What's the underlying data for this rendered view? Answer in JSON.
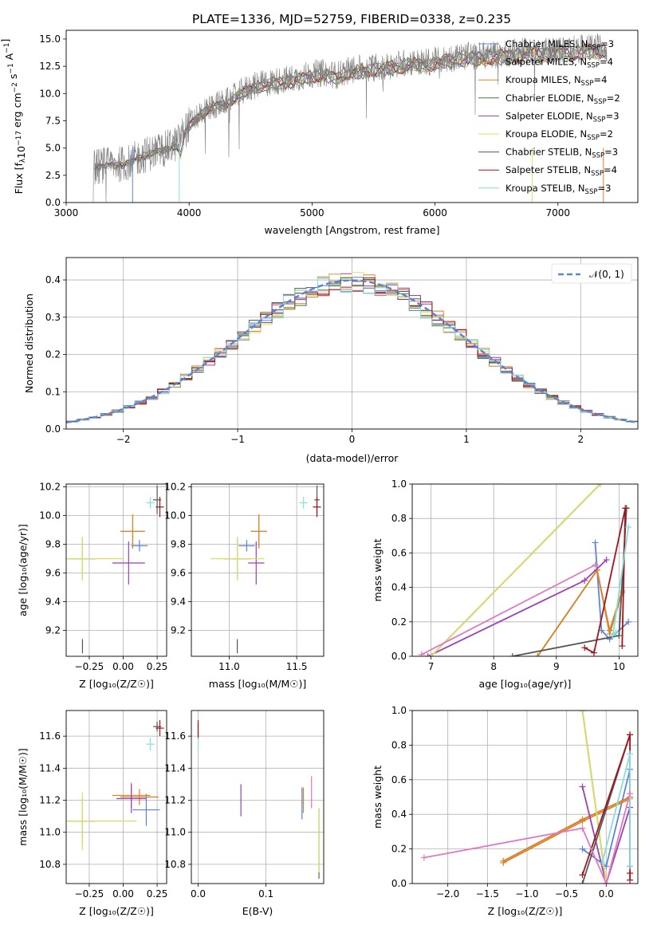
{
  "figure_title": "PLATE=1336, MJD=52759, FIBERID=0338, z=0.235",
  "colors": {
    "Chabrier MILES": "#5b84d6",
    "Salpeter MILES": "#e07a2a",
    "Kroupa MILES": "#d2882c",
    "Chabrier ELODIE": "#3a7d3a",
    "Salpeter ELODIE": "#9a3fb8",
    "Kroupa ELODIE": "#e0dc6a",
    "Chabrier STELIB": "#555555",
    "Salpeter STELIB": "#a3141c",
    "Kroupa STELIB": "#86dede",
    "data": "#808080",
    "gauss": "#5b84d6"
  },
  "chart_data": [
    {
      "type": "line",
      "panel": "spectrum",
      "xlabel": "wavelength [Angstrom, rest frame]",
      "ylabel": "Flux [f$_\\lambda$10$^{-17}$ erg cm$^{-2}$ s$^{-1}$ A$^{-1}$]",
      "xlim": [
        3000,
        7650
      ],
      "ylim": [
        0,
        15.8
      ],
      "xticks": [
        "3000",
        "4000",
        "5000",
        "6000",
        "7000"
      ],
      "yticks": [
        "0.0",
        "2.5",
        "5.0",
        "7.5",
        "10.0",
        "12.5",
        "15.0"
      ],
      "legend_position": "upper-right",
      "legend": [
        {
          "name": "Chabrier MILES, N",
          "sub": "SSP",
          "suffix": "=3"
        },
        {
          "name": "Salpeter MILES, N",
          "sub": "SSP",
          "suffix": "=4"
        },
        {
          "name": "Kroupa MILES, N",
          "sub": "SSP",
          "suffix": "=4"
        },
        {
          "name": "Chabrier ELODIE, N",
          "sub": "SSP",
          "suffix": "=2"
        },
        {
          "name": "Salpeter ELODIE, N",
          "sub": "SSP",
          "suffix": "=3"
        },
        {
          "name": "Kroupa ELODIE, N",
          "sub": "SSP",
          "suffix": "=2"
        },
        {
          "name": "Chabrier STELIB, N",
          "sub": "SSP",
          "suffix": "=3"
        },
        {
          "name": "Salpeter STELIB, N",
          "sub": "SSP",
          "suffix": "=4"
        },
        {
          "name": "Kroupa STELIB, N",
          "sub": "SSP",
          "suffix": "=3"
        }
      ],
      "continuum": [
        [
          3220,
          3.2
        ],
        [
          3300,
          3.4
        ],
        [
          3400,
          3.5
        ],
        [
          3500,
          3.6
        ],
        [
          3600,
          4.2
        ],
        [
          3700,
          4.6
        ],
        [
          3800,
          4.9
        ],
        [
          3900,
          5.4
        ],
        [
          4000,
          7.2
        ],
        [
          4100,
          8.3
        ],
        [
          4200,
          8.9
        ],
        [
          4300,
          9.2
        ],
        [
          4400,
          10.0
        ],
        [
          4500,
          10.6
        ],
        [
          4600,
          10.9
        ],
        [
          4700,
          11.1
        ],
        [
          4800,
          11.3
        ],
        [
          4900,
          11.5
        ],
        [
          5000,
          11.8
        ],
        [
          5100,
          11.9
        ],
        [
          5200,
          11.7
        ],
        [
          5300,
          12.1
        ],
        [
          5400,
          12.3
        ],
        [
          5500,
          12.4
        ],
        [
          5600,
          12.5
        ],
        [
          5700,
          12.7
        ],
        [
          5800,
          12.9
        ],
        [
          5900,
          12.8
        ],
        [
          6000,
          13.0
        ],
        [
          6100,
          13.2
        ],
        [
          6200,
          13.4
        ],
        [
          6300,
          13.4
        ],
        [
          6400,
          13.5
        ],
        [
          6500,
          13.6
        ],
        [
          6600,
          13.7
        ],
        [
          6700,
          13.8
        ],
        [
          6800,
          13.9
        ],
        [
          6900,
          13.9
        ],
        [
          7000,
          14.0
        ],
        [
          7100,
          14.0
        ],
        [
          7200,
          14.1
        ],
        [
          7300,
          14.2
        ],
        [
          7400,
          14.2
        ]
      ]
    },
    {
      "type": "line",
      "panel": "residual_histogram",
      "xlabel": "(data-model)/error",
      "ylabel": "Normed distribution",
      "xlim": [
        -2.5,
        2.5
      ],
      "ylim": [
        0,
        0.46
      ],
      "xticks": [
        "−2",
        "−1",
        "0",
        "1",
        "2"
      ],
      "yticks": [
        "0.0",
        "0.1",
        "0.2",
        "0.3",
        "0.4"
      ],
      "grid": true,
      "legend_position": "upper-right",
      "gauss_label": "𝒩(0, 1)"
    },
    {
      "type": "scatter",
      "panel": "age_vs_Z",
      "xlabel": "Z [log₁₀(Z/Z☉)]",
      "ylabel": "age  [log₁₀(age/yr)]",
      "xlim": [
        -0.42,
        0.32
      ],
      "ylim": [
        9.02,
        10.22
      ],
      "xticks": [
        "−0.25",
        "0.00",
        "0.25"
      ],
      "yticks": [
        "9.2",
        "9.4",
        "9.6",
        "9.8",
        "10.0",
        "10.2"
      ],
      "grid": true,
      "points": [
        {
          "model": "Chabrier MILES",
          "x": 0.12,
          "y": 9.79,
          "xerr": 0.06,
          "yerr": 0.04
        },
        {
          "model": "Salpeter MILES",
          "x": 0.07,
          "y": 9.89,
          "xerr": 0.09,
          "yerr": 0.11
        },
        {
          "model": "Kroupa MILES",
          "x": 0.07,
          "y": 9.89,
          "xerr": 0.09,
          "yerr": 0.12
        },
        {
          "model": "Chabrier ELODIE",
          "x": -0.3,
          "y": 9.7,
          "xerr": 0.1,
          "yerr": 0.15
        },
        {
          "model": "Salpeter ELODIE",
          "x": 0.04,
          "y": 9.67,
          "xerr": 0.12,
          "yerr": 0.15
        },
        {
          "model": "Kroupa ELODIE",
          "x": -0.3,
          "y": 9.7,
          "xerr": 0.3,
          "yerr": 0.15
        },
        {
          "model": "Chabrier STELIB",
          "x": 0.25,
          "y": 10.11,
          "xerr": 0.03,
          "yerr": 0.1
        },
        {
          "model": "Salpeter STELIB",
          "x": 0.27,
          "y": 10.06,
          "xerr": 0.03,
          "yerr": 0.07
        },
        {
          "model": "Kroupa STELIB",
          "x": 0.2,
          "y": 10.09,
          "xerr": 0.03,
          "yerr": 0.04
        },
        {
          "model": "Chabrier STELIB",
          "x": -0.3,
          "y": 9.09,
          "xerr": 0.0,
          "yerr": 0.05
        }
      ]
    },
    {
      "type": "scatter",
      "panel": "age_vs_mass",
      "xlabel": "mass [log₁₀(M/M☉)]",
      "ylabel": "",
      "xlim": [
        10.72,
        11.7
      ],
      "ylim": [
        9.02,
        10.22
      ],
      "xticks": [
        "11.0",
        "11.5"
      ],
      "yticks": [
        "9.2",
        "9.4",
        "9.6",
        "9.8",
        "10.0",
        "10.2"
      ],
      "grid": true,
      "points": [
        {
          "model": "Chabrier MILES",
          "x": 11.13,
          "y": 9.79,
          "xerr": 0.06,
          "yerr": 0.04
        },
        {
          "model": "Salpeter MILES",
          "x": 11.22,
          "y": 9.89,
          "xerr": 0.06,
          "yerr": 0.11
        },
        {
          "model": "Kroupa MILES",
          "x": 11.22,
          "y": 9.89,
          "xerr": 0.06,
          "yerr": 0.12
        },
        {
          "model": "Chabrier ELODIE",
          "x": 11.06,
          "y": 9.7,
          "xerr": 0.1,
          "yerr": 0.15
        },
        {
          "model": "Salpeter ELODIE",
          "x": 11.2,
          "y": 9.67,
          "xerr": 0.06,
          "yerr": 0.15
        },
        {
          "model": "Kroupa ELODIE",
          "x": 11.06,
          "y": 9.7,
          "xerr": 0.2,
          "yerr": 0.15
        },
        {
          "model": "Chabrier STELIB",
          "x": 11.65,
          "y": 10.11,
          "xerr": 0.02,
          "yerr": 0.1
        },
        {
          "model": "Salpeter STELIB",
          "x": 11.65,
          "y": 10.06,
          "xerr": 0.03,
          "yerr": 0.07
        },
        {
          "model": "Kroupa STELIB",
          "x": 11.55,
          "y": 10.09,
          "xerr": 0.03,
          "yerr": 0.04
        },
        {
          "model": "Chabrier STELIB",
          "x": 11.06,
          "y": 9.09,
          "xerr": 0.0,
          "yerr": 0.05
        }
      ]
    },
    {
      "type": "line",
      "panel": "mass_weight_vs_age",
      "xlabel": "age  [log₁₀(age/yr)]",
      "ylabel": "mass weight",
      "xlim": [
        6.7,
        10.3
      ],
      "ylim": [
        0,
        1
      ],
      "xticks": [
        "7",
        "8",
        "9",
        "10"
      ],
      "yticks": [
        "0.0",
        "0.2",
        "0.4",
        "0.6",
        "0.8",
        "1.0"
      ],
      "grid": true,
      "series": [
        {
          "model": "Chabrier MILES",
          "x": [
            9.62,
            9.72,
            9.85,
            10.15
          ],
          "y": [
            0.66,
            0.15,
            0.1,
            0.2
          ]
        },
        {
          "model": "Salpeter MILES",
          "x": [
            8.7,
            9.65,
            9.85,
            10.05
          ],
          "y": [
            0.0,
            0.5,
            0.15,
            0.38
          ]
        },
        {
          "model": "Kroupa MILES",
          "x": [
            8.7,
            9.65,
            9.85,
            10.05
          ],
          "y": [
            0.0,
            0.5,
            0.13,
            0.37
          ]
        },
        {
          "model": "Chabrier ELODIE",
          "x": [
            7.0,
            9.7
          ],
          "y": [
            0.0,
            1.0
          ]
        },
        {
          "model": "Salpeter ELODIE",
          "x": [
            6.95,
            9.45,
            9.8
          ],
          "y": [
            0.0,
            0.44,
            0.56
          ]
        },
        {
          "model": "Kroupa ELODIE",
          "x": [
            7.0,
            9.7
          ],
          "y": [
            0.0,
            1.0
          ]
        },
        {
          "model": "Chabrier STELIB",
          "x": [
            8.3,
            10.0,
            10.12
          ],
          "y": [
            0.0,
            0.12,
            0.86
          ]
        },
        {
          "model": "Salpeter STELIB",
          "x": [
            9.45,
            9.6,
            10.1,
            10.05
          ],
          "y": [
            0.05,
            0.02,
            0.86,
            0.06
          ]
        },
        {
          "model": "Kroupa STELIB",
          "x": [
            9.95,
            9.9,
            10.15
          ],
          "y": [
            0.14,
            0.12,
            0.75
          ]
        },
        {
          "model": "Salpeter ELODIE pink",
          "x": [
            6.85,
            9.62
          ],
          "y": [
            0.01,
            0.53
          ]
        }
      ]
    },
    {
      "type": "scatter",
      "panel": "mass_vs_Z",
      "xlabel": "Z [log₁₀(Z/Z☉)]",
      "ylabel": "mass [log₁₀(M/M☉)]",
      "xlim": [
        -0.42,
        0.32
      ],
      "ylim": [
        10.68,
        11.76
      ],
      "xticks": [
        "−0.25",
        "0.00",
        "0.25"
      ],
      "yticks": [
        "10.8",
        "11.0",
        "11.2",
        "11.4",
        "11.6"
      ],
      "grid": true,
      "points": [
        {
          "model": "Chabrier MILES",
          "x": 0.17,
          "y": 11.14,
          "xerr": 0.1,
          "yerr": 0.1
        },
        {
          "model": "Salpeter MILES",
          "x": 0.12,
          "y": 11.22,
          "xerr": 0.14,
          "yerr": 0.05
        },
        {
          "model": "Kroupa MILES",
          "x": 0.06,
          "y": 11.23,
          "xerr": 0.14,
          "yerr": 0.08
        },
        {
          "model": "Chabrier ELODIE",
          "x": -0.3,
          "y": 11.07,
          "xerr": 0.1,
          "yerr": 0.15
        },
        {
          "model": "Salpeter ELODIE",
          "x": 0.06,
          "y": 11.21,
          "xerr": 0.11,
          "yerr": 0.09
        },
        {
          "model": "Kroupa ELODIE",
          "x": -0.3,
          "y": 11.07,
          "xerr": 0.4,
          "yerr": 0.18
        },
        {
          "model": "Chabrier STELIB",
          "x": 0.25,
          "y": 11.66,
          "xerr": 0.03,
          "yerr": 0.03
        },
        {
          "model": "Salpeter STELIB",
          "x": 0.27,
          "y": 11.65,
          "xerr": 0.03,
          "yerr": 0.05
        },
        {
          "model": "Kroupa STELIB",
          "x": 0.2,
          "y": 11.55,
          "xerr": 0.03,
          "yerr": 0.04
        }
      ]
    },
    {
      "type": "scatter",
      "panel": "mass_vs_EBV",
      "xlabel": "E(B-V)",
      "ylabel": "",
      "xlim": [
        -0.01,
        0.185
      ],
      "ylim": [
        10.68,
        11.76
      ],
      "xticks": [
        "0.0",
        "0.1"
      ],
      "yticks": [
        "10.8",
        "11.0",
        "11.2",
        "11.4",
        "11.6"
      ],
      "grid": true,
      "points": [
        {
          "model": "Chabrier MILES",
          "x": 0.153,
          "y": 11.18,
          "yerr": 0.1
        },
        {
          "model": "Salpeter MILES",
          "x": 0.155,
          "y": 11.22,
          "yerr": 0.05
        },
        {
          "model": "Kroupa MILES",
          "x": 0.155,
          "y": 11.2,
          "yerr": 0.08
        },
        {
          "model": "Chabrier ELODIE",
          "x": 0.178,
          "y": 10.93,
          "yerr": 0.22
        },
        {
          "model": "Salpeter ELODIE",
          "x": 0.063,
          "y": 11.2,
          "yerr": 0.1
        },
        {
          "model": "Kroupa ELODIE",
          "x": 0.178,
          "y": 10.95,
          "yerr": 0.2
        },
        {
          "model": "Chabrier STELIB",
          "x": 0.0,
          "y": 11.64,
          "yerr": 0.04
        },
        {
          "model": "Salpeter STELIB",
          "x": 0.0,
          "y": 11.64,
          "yerr": 0.06
        },
        {
          "model": "Kroupa STELIB",
          "x": 0.0,
          "y": 11.55,
          "yerr": 0.04
        },
        {
          "model": "Salpeter ELODIE pink",
          "x": 0.167,
          "y": 11.25,
          "yerr": 0.1
        }
      ]
    },
    {
      "type": "line",
      "panel": "mass_weight_vs_Z",
      "xlabel": "Z [log₁₀(Z/Z☉)]",
      "ylabel": "mass weight",
      "xlim": [
        -2.45,
        0.4
      ],
      "ylim": [
        0,
        1
      ],
      "xticks": [
        "−2.0",
        "−1.5",
        "−1.0",
        "−0.5",
        "0.0"
      ],
      "yticks": [
        "0.0",
        "0.2",
        "0.4",
        "0.6",
        "0.8",
        "1.0"
      ],
      "grid": true,
      "series": [
        {
          "model": "Chabrier MILES",
          "x": [
            -0.3,
            0.0,
            0.3,
            0.3
          ],
          "y": [
            0.2,
            0.1,
            0.66,
            0.1
          ]
        },
        {
          "model": "Salpeter MILES",
          "x": [
            -1.3,
            -0.3,
            0.3
          ],
          "y": [
            0.13,
            0.37,
            0.5
          ]
        },
        {
          "model": "Kroupa MILES",
          "x": [
            -1.3,
            -0.3,
            0.3
          ],
          "y": [
            0.12,
            0.36,
            0.49
          ]
        },
        {
          "model": "Chabrier ELODIE",
          "x": [
            -0.3,
            0.0
          ],
          "y": [
            1.0,
            0.0
          ]
        },
        {
          "model": "Salpeter ELODIE",
          "x": [
            -0.3,
            0.0,
            0.3
          ],
          "y": [
            0.56,
            0.0,
            0.44
          ]
        },
        {
          "model": "Kroupa ELODIE",
          "x": [
            -0.3,
            0.0
          ],
          "y": [
            1.0,
            0.0
          ]
        },
        {
          "model": "Chabrier STELIB",
          "x": [
            -0.3,
            0.3
          ],
          "y": [
            0.0,
            0.86
          ]
        },
        {
          "model": "Salpeter STELIB",
          "x": [
            -0.3,
            0.3,
            0.3,
            0.3
          ],
          "y": [
            0.05,
            0.86,
            0.06,
            0.02
          ]
        },
        {
          "model": "Kroupa STELIB",
          "x": [
            -0.05,
            0.3,
            0.3
          ],
          "y": [
            0.12,
            0.75,
            0.1
          ]
        },
        {
          "model": "Salpeter ELODIE pink",
          "x": [
            -2.3,
            -0.3,
            0.0,
            0.3
          ],
          "y": [
            0.15,
            0.32,
            0.0,
            0.52
          ]
        }
      ]
    }
  ]
}
